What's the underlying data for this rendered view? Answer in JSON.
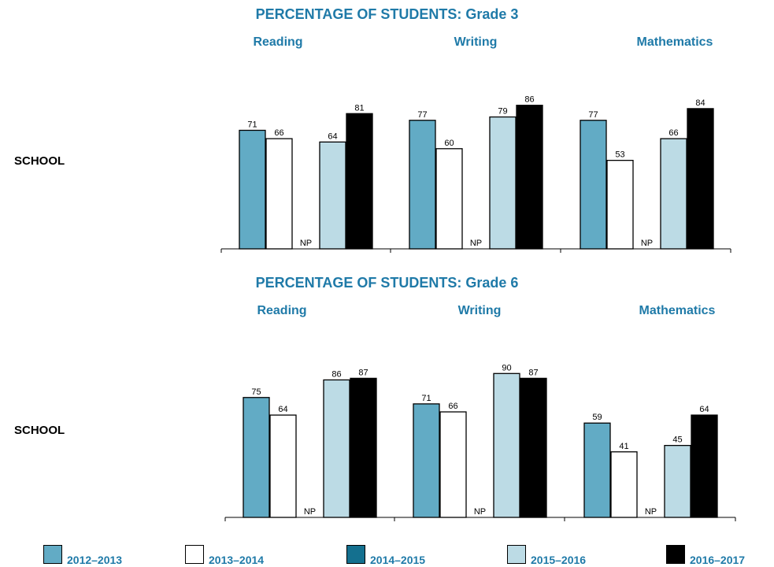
{
  "row_label": "SCHOOL",
  "legend": [
    {
      "label": "2012–2013",
      "color": "#62abc5"
    },
    {
      "label": "2013–2014",
      "color": "#ffffff"
    },
    {
      "label": "2014–2015",
      "color": "#14708f"
    },
    {
      "label": "2015–2016",
      "color": "#bcdbe5"
    },
    {
      "label": "2016–2017",
      "color": "#000000"
    }
  ],
  "missing_label": "NP",
  "chart_data": [
    {
      "type": "bar",
      "title": "PERCENTAGE OF STUDENTS: Grade 3",
      "row_label": "SCHOOL",
      "series_names": [
        "2012–2013",
        "2013–2014",
        "2014–2015",
        "2015–2016",
        "2016–2017"
      ],
      "groups": [
        {
          "subject": "Reading",
          "values": [
            71,
            66,
            null,
            64,
            81
          ]
        },
        {
          "subject": "Writing",
          "values": [
            77,
            60,
            null,
            79,
            86
          ]
        },
        {
          "subject": "Mathematics",
          "values": [
            77,
            53,
            null,
            66,
            84
          ]
        }
      ],
      "ylim": [
        0,
        100
      ]
    },
    {
      "type": "bar",
      "title": "PERCENTAGE OF STUDENTS: Grade 6",
      "row_label": "SCHOOL",
      "series_names": [
        "2012–2013",
        "2013–2014",
        "2014–2015",
        "2015–2016",
        "2016–2017"
      ],
      "groups": [
        {
          "subject": "Reading",
          "values": [
            75,
            64,
            null,
            86,
            87
          ]
        },
        {
          "subject": "Writing",
          "values": [
            71,
            66,
            null,
            90,
            87
          ]
        },
        {
          "subject": "Mathematics",
          "values": [
            59,
            41,
            null,
            45,
            64
          ]
        }
      ],
      "ylim": [
        0,
        100
      ]
    }
  ]
}
